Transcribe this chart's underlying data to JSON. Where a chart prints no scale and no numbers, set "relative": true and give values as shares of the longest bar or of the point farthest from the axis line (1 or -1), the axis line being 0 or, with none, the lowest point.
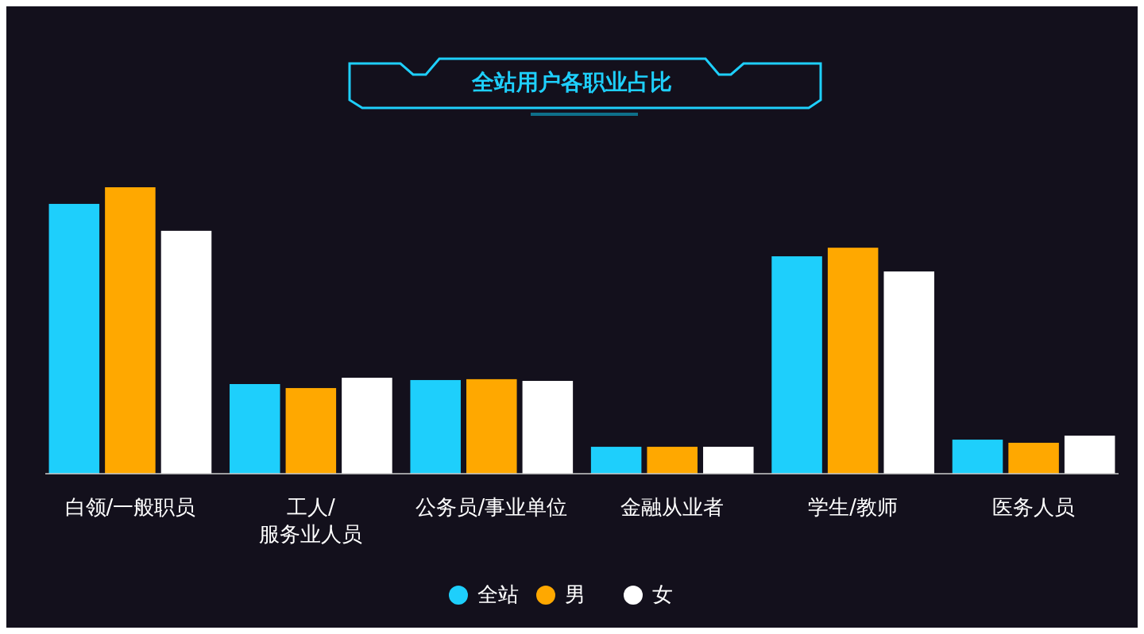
{
  "chart_data": {
    "type": "bar",
    "title": "全站用户各职业占比",
    "relative": true,
    "categories": [
      "白领/一般职员",
      "工人/\n服务业人员",
      "公务员/事业单位",
      "金融从业者",
      "学生/教师",
      "医务人员"
    ],
    "series": [
      {
        "name": "全站",
        "color": "#1ecffc",
        "values": [
          0.942,
          0.313,
          0.327,
          0.094,
          0.759,
          0.119
        ]
      },
      {
        "name": "男",
        "color": "#ffa800",
        "values": [
          1,
          0.299,
          0.33,
          0.094,
          0.789,
          0.108
        ]
      },
      {
        "name": "女",
        "color": "#ffffff",
        "values": [
          0.848,
          0.335,
          0.324,
          0.094,
          0.706,
          0.133
        ]
      }
    ],
    "legend": "bottom",
    "grid": false
  }
}
